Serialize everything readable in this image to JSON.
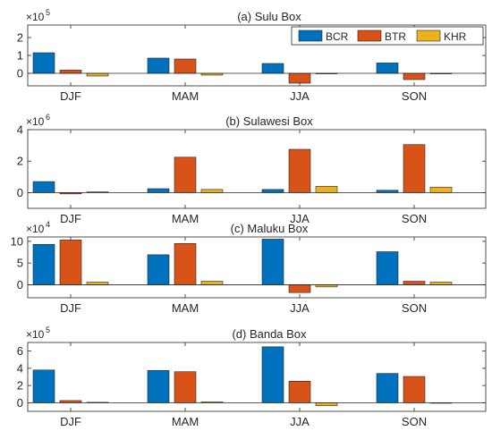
{
  "figure": {
    "legend": {
      "entries": [
        {
          "label": "BCR",
          "color": "#0072BD"
        },
        {
          "label": "BTR",
          "color": "#D95319"
        },
        {
          "label": "KHR",
          "color": "#EDB120"
        }
      ],
      "placement": "top-right of first panel"
    }
  },
  "chart_data": [
    {
      "type": "bar",
      "title": "(a) Sulu Box",
      "categories": [
        "DJF",
        "MAM",
        "JJA",
        "SON"
      ],
      "exponent_label": "×10",
      "exponent_power": "5",
      "yticks": [
        "0",
        "1",
        "2"
      ],
      "ylim": [
        -0.7,
        2.7
      ],
      "grid": false,
      "series": [
        {
          "name": "BCR",
          "values": [
            1.15,
            0.85,
            0.55,
            0.58
          ]
        },
        {
          "name": "BTR",
          "values": [
            0.18,
            0.8,
            -0.55,
            -0.35
          ]
        },
        {
          "name": "KHR",
          "values": [
            -0.15,
            -0.1,
            -0.03,
            -0.02
          ]
        }
      ]
    },
    {
      "type": "bar",
      "title": "(b) Sulawesi Box",
      "categories": [
        "DJF",
        "MAM",
        "JJA",
        "SON"
      ],
      "exponent_label": "×10",
      "exponent_power": "6",
      "yticks": [
        "0",
        "2",
        "4"
      ],
      "ylim": [
        -1,
        4
      ],
      "grid": false,
      "series": [
        {
          "name": "BCR",
          "values": [
            0.7,
            0.25,
            0.2,
            0.15
          ]
        },
        {
          "name": "BTR",
          "values": [
            -0.08,
            2.25,
            2.75,
            3.05
          ]
        },
        {
          "name": "KHR",
          "values": [
            0.05,
            0.2,
            0.4,
            0.35
          ]
        }
      ]
    },
    {
      "type": "bar",
      "title": "(c) Maluku Box",
      "categories": [
        "DJF",
        "MAM",
        "JJA",
        "SON"
      ],
      "exponent_label": "×10",
      "exponent_power": "4",
      "yticks": [
        "0",
        "5",
        "10"
      ],
      "ylim": [
        -3,
        11
      ],
      "grid": false,
      "series": [
        {
          "name": "BCR",
          "values": [
            9.3,
            6.9,
            10.5,
            7.6
          ]
        },
        {
          "name": "BTR",
          "values": [
            10.3,
            9.5,
            -1.8,
            0.8
          ]
        },
        {
          "name": "KHR",
          "values": [
            0.6,
            0.8,
            -0.5,
            0.6
          ]
        }
      ]
    },
    {
      "type": "bar",
      "title": "(d) Banda Box",
      "categories": [
        "DJF",
        "MAM",
        "JJA",
        "SON"
      ],
      "exponent_label": "×10",
      "exponent_power": "5",
      "yticks": [
        "0",
        "2",
        "4",
        "6"
      ],
      "ylim": [
        -1,
        7
      ],
      "grid": false,
      "series": [
        {
          "name": "BCR",
          "values": [
            3.8,
            3.75,
            6.5,
            3.4
          ]
        },
        {
          "name": "BTR",
          "values": [
            0.25,
            3.6,
            2.5,
            3.05
          ]
        },
        {
          "name": "KHR",
          "values": [
            0.05,
            0.1,
            -0.35,
            -0.05
          ]
        }
      ]
    }
  ]
}
